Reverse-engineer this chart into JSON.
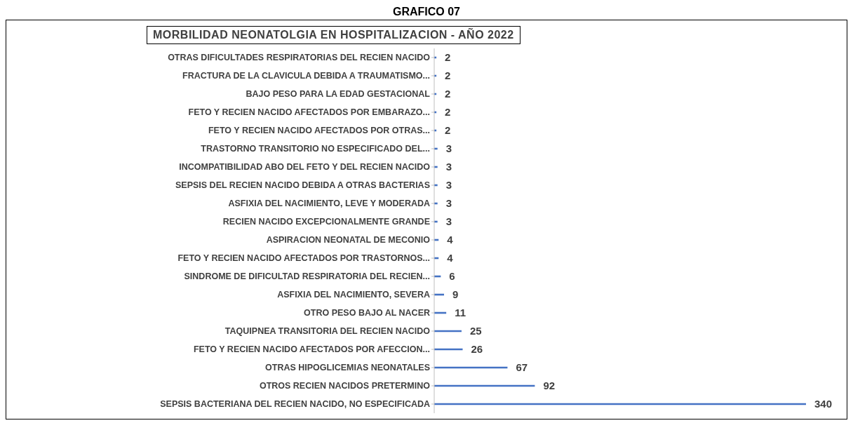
{
  "chart_data": {
    "type": "bar",
    "orientation": "horizontal",
    "title": "GRAFICO 07",
    "subtitle": "MORBILIDAD NEONATOLGIA  EN HOSPITALIZACION - AÑO 2022",
    "categories": [
      "OTRAS DIFICULTADES RESPIRATORIAS DEL RECIEN NACIDO",
      "FRACTURA DE LA CLAVICULA DEBIDA A TRAUMATISMO...",
      "BAJO PESO PARA LA EDAD GESTACIONAL",
      "FETO Y RECIEN NACIDO AFECTADOS POR EMBARAZO...",
      "FETO Y RECIEN NACIDO AFECTADOS POR OTRAS...",
      "TRASTORNO TRANSITORIO NO ESPECIFICADO DEL...",
      "INCOMPATIBILIDAD ABO DEL FETO Y DEL RECIEN NACIDO",
      "SEPSIS DEL RECIEN NACIDO DEBIDA A OTRAS BACTERIAS",
      "ASFIXIA DEL NACIMIENTO, LEVE Y MODERADA",
      "RECIEN NACIDO EXCEPCIONALMENTE GRANDE",
      "ASPIRACION NEONATAL DE MECONIO",
      "FETO Y RECIEN NACIDO AFECTADOS POR TRASTORNOS...",
      "SINDROME DE DIFICULTAD RESPIRATORIA DEL RECIEN...",
      "ASFIXIA DEL NACIMIENTO, SEVERA",
      "OTRO PESO BAJO AL NACER",
      "TAQUIPNEA TRANSITORIA DEL RECIEN NACIDO",
      "FETO Y RECIEN NACIDO AFECTADOS POR AFECCION...",
      "OTRAS HIPOGLICEMIAS NEONATALES",
      "OTROS RECIEN NACIDOS PRETERMINO",
      "SEPSIS BACTERIANA DEL RECIEN NACIDO, NO ESPECIFICADA"
    ],
    "values": [
      2,
      2,
      2,
      2,
      2,
      3,
      3,
      3,
      3,
      3,
      4,
      4,
      6,
      9,
      11,
      25,
      26,
      67,
      92,
      340
    ],
    "color": "#4472c4",
    "data_labels": true,
    "grid": false,
    "legend": false
  }
}
